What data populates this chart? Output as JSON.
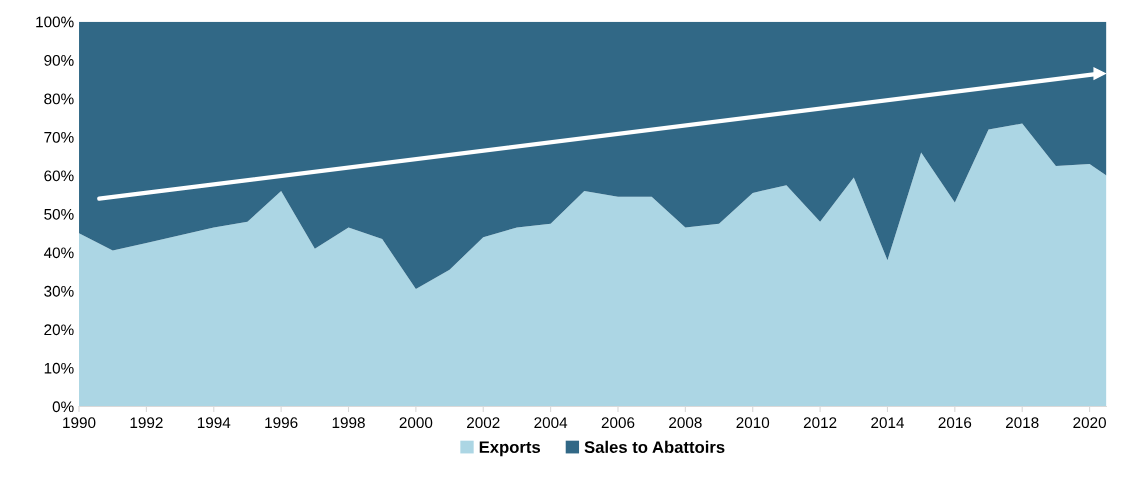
{
  "chart_data": {
    "type": "area",
    "stacked": true,
    "x": [
      1990,
      1991,
      1992,
      1993,
      1994,
      1995,
      1996,
      1997,
      1998,
      1999,
      2000,
      2001,
      2002,
      2003,
      2004,
      2005,
      2006,
      2007,
      2008,
      2009,
      2010,
      2011,
      2012,
      2013,
      2014,
      2015,
      2016,
      2017,
      2018,
      2019,
      2020,
      2020.5
    ],
    "series": [
      {
        "name": "Exports",
        "color": "#acd6e4",
        "values": [
          45,
          40.5,
          42.5,
          44.5,
          46.5,
          48,
          56,
          41,
          46.5,
          43.5,
          30.5,
          35.5,
          44,
          46.5,
          47.5,
          56,
          54.5,
          54.5,
          46.5,
          47.5,
          55.5,
          57.5,
          48,
          59.5,
          38,
          66,
          53,
          72,
          73.5,
          62.5,
          63,
          60
        ]
      },
      {
        "name": "Sales to Abattoirs",
        "color": "#316886",
        "values": [
          55,
          59.5,
          57.5,
          55.5,
          53.5,
          52,
          44,
          59,
          53.5,
          56.5,
          69.5,
          64.5,
          56,
          53.5,
          52.5,
          44,
          45.5,
          45.5,
          53.5,
          52.5,
          44.5,
          42.5,
          52,
          40.5,
          62,
          34,
          47,
          28,
          26.5,
          37.5,
          37,
          40
        ]
      },
      {
        "type": "line",
        "color": "#ffffff",
        "x": [
          1990.6,
          2020.3
        ],
        "values": [
          54,
          86.5
        ]
      }
    ],
    "xlim": [
      1990,
      2020.5
    ],
    "xticks": [
      1990,
      1992,
      1994,
      1996,
      1998,
      2000,
      2002,
      2004,
      2006,
      2008,
      2010,
      2012,
      2014,
      2016,
      2018,
      2020
    ],
    "ylim": [
      0,
      100
    ],
    "yticks": [
      {
        "value": 0,
        "label": "0%"
      },
      {
        "value": 10,
        "label": "10%"
      },
      {
        "value": 20,
        "label": "20%"
      },
      {
        "value": 30,
        "label": "30%"
      },
      {
        "value": 40,
        "label": "40%"
      },
      {
        "value": 50,
        "label": "50%"
      },
      {
        "value": 60,
        "label": "60%"
      },
      {
        "value": 70,
        "label": "70%"
      },
      {
        "value": 80,
        "label": "80%"
      },
      {
        "value": 90,
        "label": "90%"
      },
      {
        "value": 100,
        "label": "100%"
      }
    ],
    "legend": "bottom"
  }
}
